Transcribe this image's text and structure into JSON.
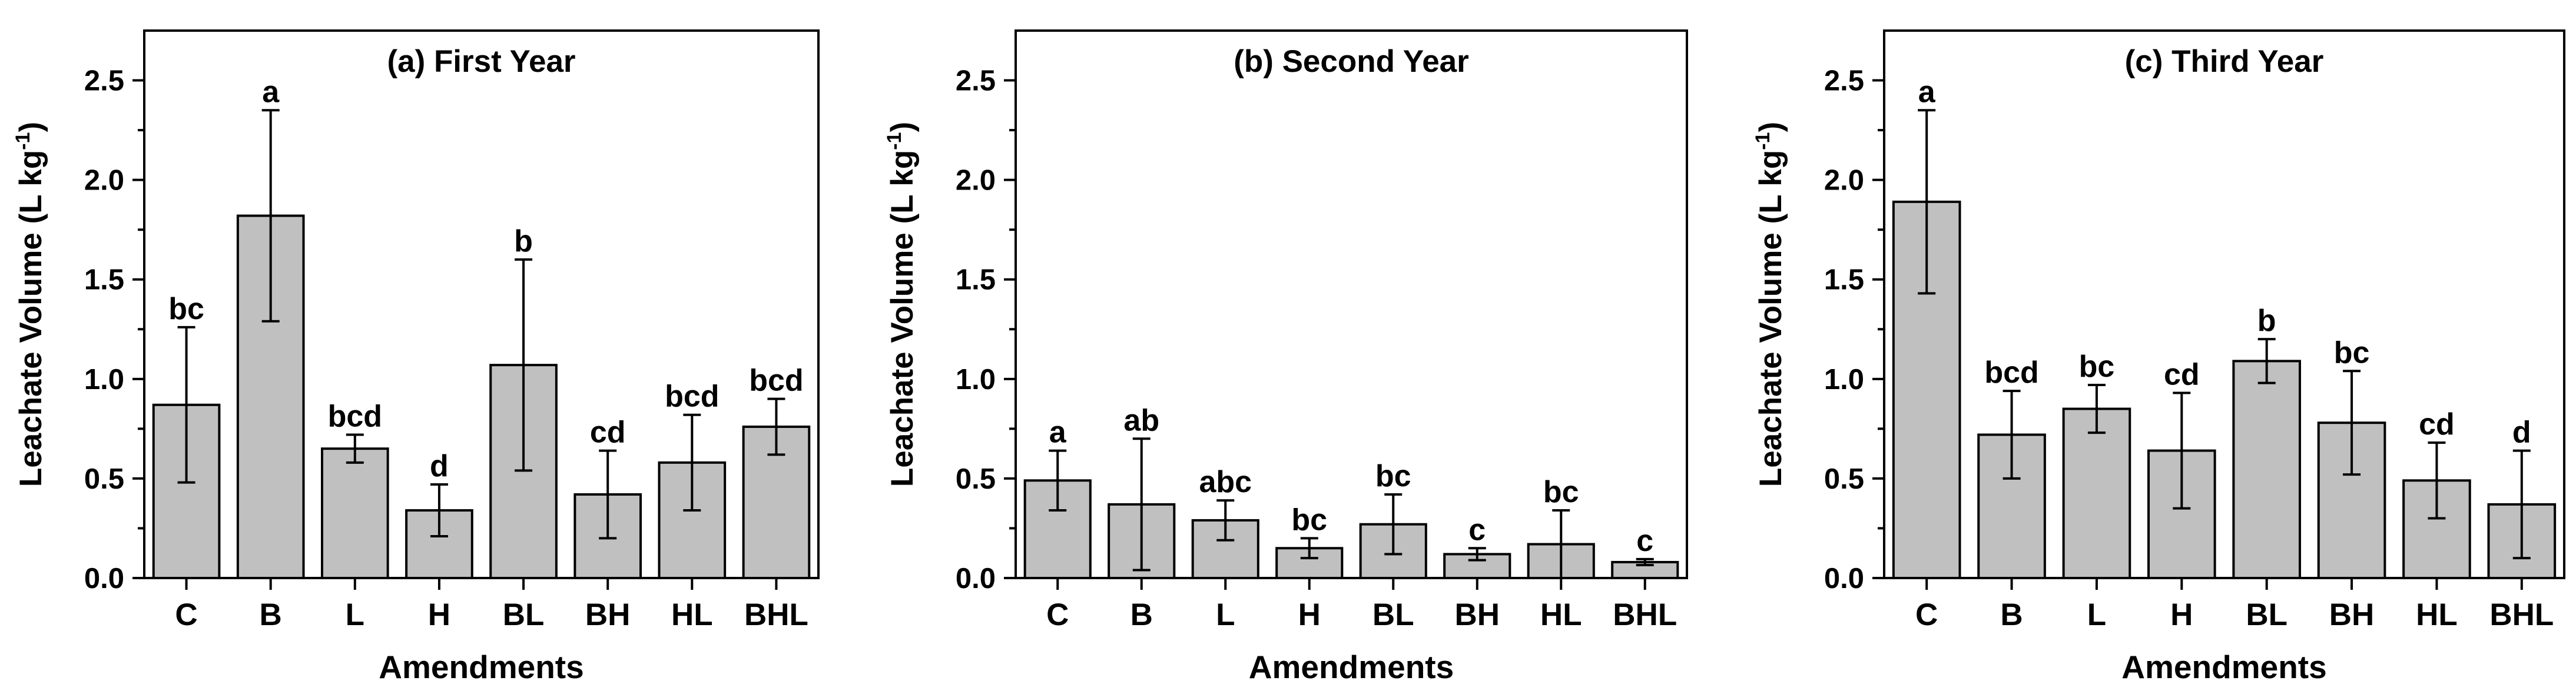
{
  "chart_data": [
    {
      "type": "bar",
      "title": "(a) First Year",
      "xlabel": "Amendments",
      "ylabel": "Leachate Volume (L kg",
      "ylabel_sup": "-1",
      "ylabel_close": ")",
      "ylim": [
        0,
        2.75
      ],
      "yticks": [
        "0.0",
        "0.5",
        "1.0",
        "1.5",
        "2.0",
        "2.5"
      ],
      "categories": [
        "C",
        "B",
        "L",
        "H",
        "BL",
        "BH",
        "HL",
        "BHL"
      ],
      "values": [
        0.87,
        1.82,
        0.65,
        0.34,
        1.07,
        0.42,
        0.58,
        0.76
      ],
      "errors": [
        0.39,
        0.53,
        0.07,
        0.13,
        0.53,
        0.22,
        0.24,
        0.14
      ],
      "letters": [
        "bc",
        "a",
        "bcd",
        "d",
        "b",
        "cd",
        "bcd",
        "bcd"
      ],
      "bar_color": "#c0c0c0"
    },
    {
      "type": "bar",
      "title": "(b) Second Year",
      "xlabel": "Amendments",
      "ylabel": "Leachate Volume (L kg",
      "ylabel_sup": "-1",
      "ylabel_close": ")",
      "ylim": [
        0,
        2.75
      ],
      "yticks": [
        "0.0",
        "0.5",
        "1.0",
        "1.5",
        "2.0",
        "2.5"
      ],
      "categories": [
        "C",
        "B",
        "L",
        "H",
        "BL",
        "BH",
        "HL",
        "BHL"
      ],
      "values": [
        0.49,
        0.37,
        0.29,
        0.15,
        0.27,
        0.12,
        0.17,
        0.08
      ],
      "errors": [
        0.15,
        0.33,
        0.1,
        0.05,
        0.15,
        0.03,
        0.17,
        0.015
      ],
      "letters": [
        "a",
        "ab",
        "abc",
        "bc",
        "bc",
        "c",
        "bc",
        "c"
      ],
      "bar_color": "#c0c0c0"
    },
    {
      "type": "bar",
      "title": "(c) Third Year",
      "xlabel": "Amendments",
      "ylabel": "Leachate Volume (L kg",
      "ylabel_sup": "-1",
      "ylabel_close": ")",
      "ylim": [
        0,
        2.75
      ],
      "yticks": [
        "0.0",
        "0.5",
        "1.0",
        "1.5",
        "2.0",
        "2.5"
      ],
      "categories": [
        "C",
        "B",
        "L",
        "H",
        "BL",
        "BH",
        "HL",
        "BHL"
      ],
      "values": [
        1.89,
        0.72,
        0.85,
        0.64,
        1.09,
        0.78,
        0.49,
        0.37
      ],
      "errors": [
        0.46,
        0.22,
        0.12,
        0.29,
        0.11,
        0.26,
        0.19,
        0.27
      ],
      "letters": [
        "a",
        "bcd",
        "bc",
        "cd",
        "b",
        "bc",
        "cd",
        "d"
      ],
      "bar_color": "#c0c0c0"
    }
  ]
}
